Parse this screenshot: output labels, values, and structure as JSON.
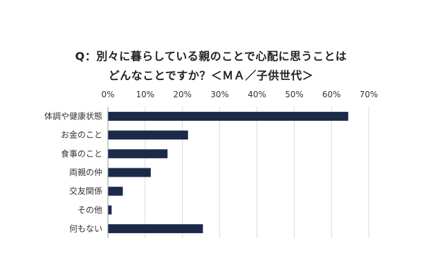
{
  "chart_data": {
    "type": "bar",
    "orientation": "horizontal",
    "title": [
      "Q：別々に暮らしている親のことで心配に思うことは",
      "どんなことですか？＜ＭＡ／子供世代＞"
    ],
    "categories": [
      "体調や健康状態",
      "お金のこと",
      "食事のこと",
      "両親の仲",
      "交友関係",
      "その他",
      "何もない"
    ],
    "values": [
      64.5,
      21.5,
      16,
      11.5,
      4,
      1,
      25.5
    ],
    "xlim": [
      0,
      70
    ],
    "xticks": [
      0,
      10,
      20,
      30,
      40,
      50,
      60,
      70
    ],
    "xtick_format": "%",
    "grid": true,
    "legend": false,
    "bar_color": "#1c2a4a",
    "grid_color": "#d9d9d9",
    "axis_color": "#999999"
  }
}
